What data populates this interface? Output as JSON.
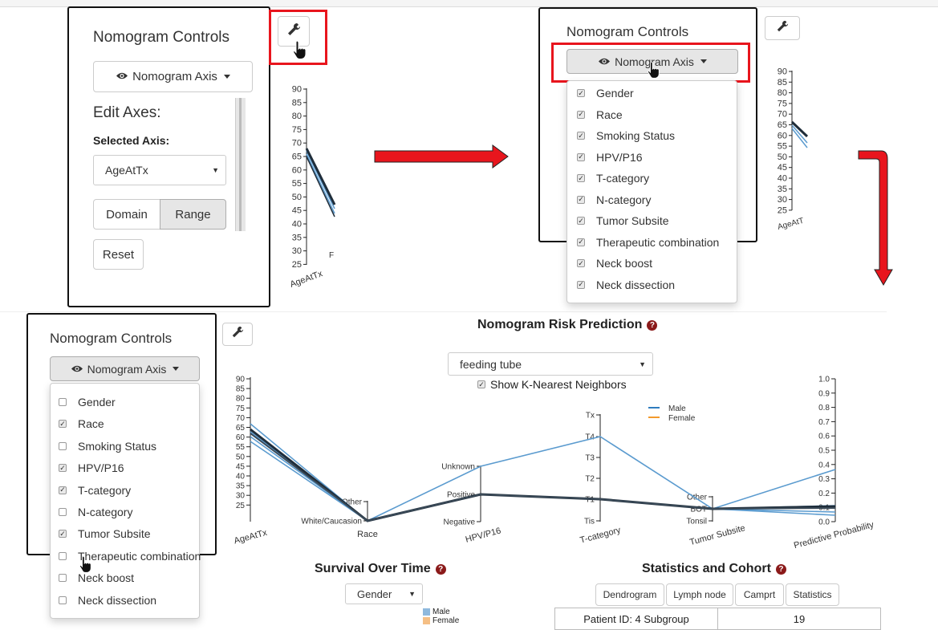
{
  "controls": {
    "title": "Nomogram Controls",
    "axis_button": "Nomogram Axis",
    "edit_axes": "Edit Axes:",
    "selected_axis_label": "Selected Axis:",
    "selected_axis_value": "AgeAtTx",
    "domain_button": "Domain",
    "range_button": "Range",
    "reset_button": "Reset"
  },
  "axis_options": [
    "Gender",
    "Race",
    "Smoking Status",
    "HPV/P16",
    "T-category",
    "N-category",
    "Tumor Subsite",
    "Therapeutic combination",
    "Neck boost",
    "Neck dissection"
  ],
  "dropdown_top_checked": [
    true,
    true,
    true,
    true,
    true,
    true,
    true,
    true,
    true,
    true
  ],
  "dropdown_bottom_checked": [
    false,
    true,
    false,
    true,
    true,
    false,
    true,
    false,
    false,
    false
  ],
  "mini_axis": {
    "ticks": [
      "90",
      "85",
      "80",
      "75",
      "70",
      "65",
      "60",
      "55",
      "50",
      "45",
      "40",
      "35",
      "30",
      "25"
    ],
    "label": "AgeAtTx",
    "letter": "F",
    "short_label": "AgeAtT"
  },
  "nomogram": {
    "title": "Nomogram Risk Prediction",
    "outcome_select": "feeding tube",
    "knn_label": "Show K-Nearest Neighbors",
    "legend": [
      {
        "name": "Male",
        "color": "#2f7dbf"
      },
      {
        "name": "Female",
        "color": "#f39a2c"
      }
    ],
    "axes": {
      "age": {
        "label": "AgeAtTx",
        "ticks": [
          "90",
          "85",
          "80",
          "75",
          "70",
          "65",
          "60",
          "55",
          "50",
          "45",
          "40",
          "35",
          "30",
          "25"
        ]
      },
      "race": {
        "label": "Race",
        "ticks": [
          "Other",
          "White/Caucasion"
        ]
      },
      "hpv": {
        "label": "HPV/P16",
        "ticks": [
          "Unknown",
          "Positive",
          "Negative"
        ]
      },
      "tcat": {
        "label": "T-category",
        "ticks": [
          "Tx",
          "T4",
          "T3",
          "T2",
          "T1",
          "Tis"
        ]
      },
      "subsite": {
        "label": "Tumor Subsite",
        "ticks": [
          "Other",
          "BOT",
          "Tonsil"
        ]
      },
      "prob": {
        "label": "Predictive Probability",
        "ticks": [
          "1.0",
          "0.9",
          "0.8",
          "0.7",
          "0.6",
          "0.5",
          "0.4",
          "0.3",
          "0.2",
          "0.1",
          "0.0"
        ]
      }
    }
  },
  "survival": {
    "title": "Survival Over Time",
    "select": "Gender",
    "legend": [
      {
        "name": "Male",
        "color": "#8fb9dd"
      },
      {
        "name": "Female",
        "color": "#f5bf85"
      }
    ]
  },
  "stats": {
    "title": "Statistics and Cohort",
    "tabs": [
      "Dendrogram",
      "Lymph node",
      "Camprt",
      "Statistics"
    ],
    "row_label": "Patient ID: 4 Subgroup",
    "row_value": "19"
  },
  "colors": {
    "highlight": "#e8151d",
    "patient_line": "#1f2d3a",
    "neighbor_line": "#5b9bcf"
  }
}
